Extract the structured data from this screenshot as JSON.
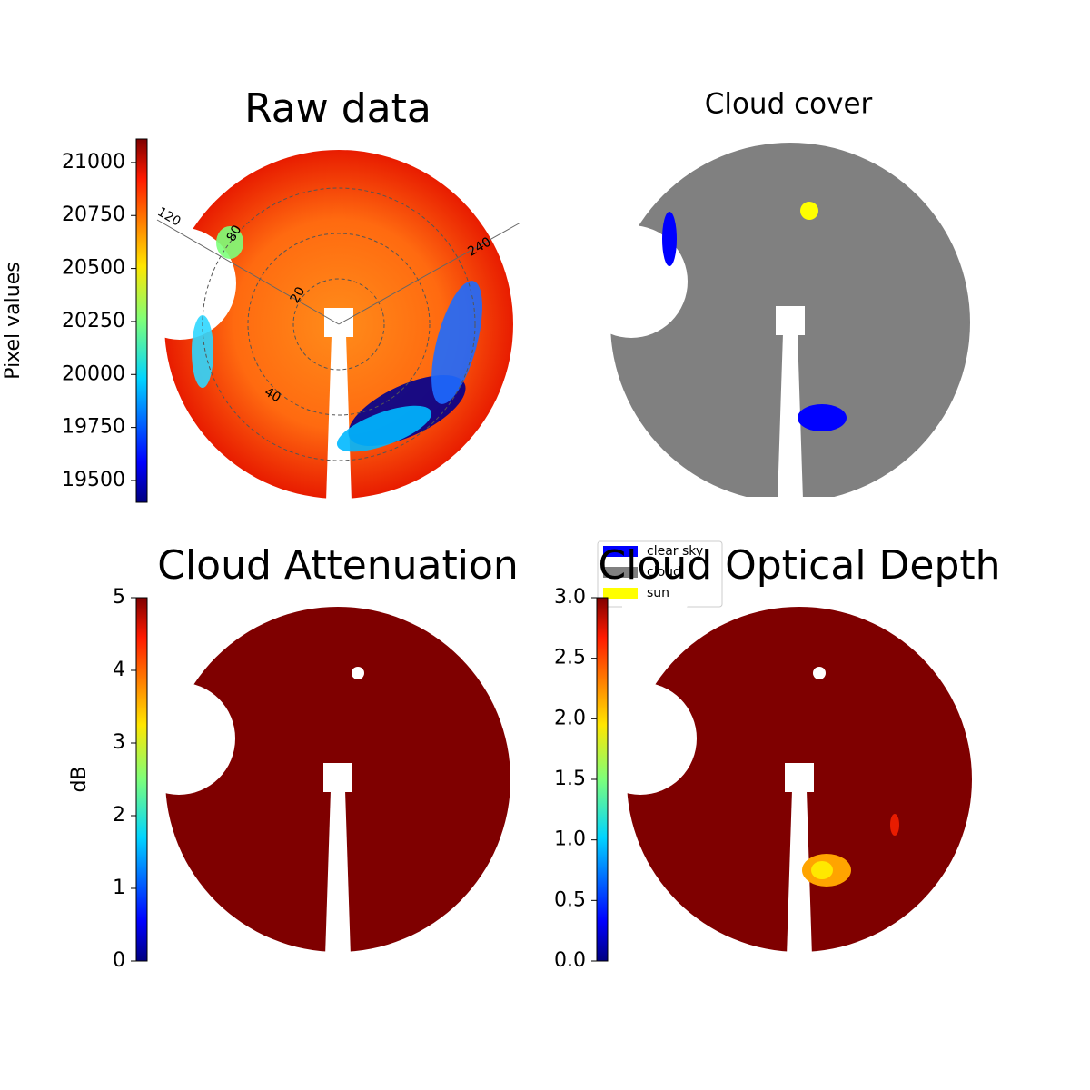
{
  "chart_data": [
    {
      "type": "image",
      "title": "Raw data",
      "colorbar_label": "Pixel values",
      "ylim": [
        19397,
        21111
      ],
      "yticks": [
        19500,
        19750,
        20000,
        20250,
        20500,
        20750,
        21000
      ],
      "annotations": [
        "120",
        "240",
        "80",
        "20",
        "40"
      ]
    },
    {
      "type": "image",
      "title": "Cloud cover",
      "series": [
        {
          "name": "clear sky",
          "color": "#0000ff"
        },
        {
          "name": "cloud",
          "color": "#808080"
        },
        {
          "name": "sun",
          "color": "#ffff00"
        }
      ]
    },
    {
      "type": "image",
      "title": "Cloud Attenuation",
      "colorbar_label": "dB",
      "ylim": [
        0,
        5
      ],
      "yticks": [
        0,
        1,
        2,
        3,
        4,
        5
      ]
    },
    {
      "type": "image",
      "title": "Cloud Optical Depth",
      "ylim": [
        0,
        3
      ],
      "yticks": [
        {
          "value": 0,
          "label": "0.0"
        },
        0.5,
        {
          "value": 1,
          "label": "1.0"
        },
        1.5,
        {
          "value": 2,
          "label": "2.0"
        },
        2.5,
        {
          "value": 3,
          "label": "3.0"
        }
      ]
    }
  ]
}
